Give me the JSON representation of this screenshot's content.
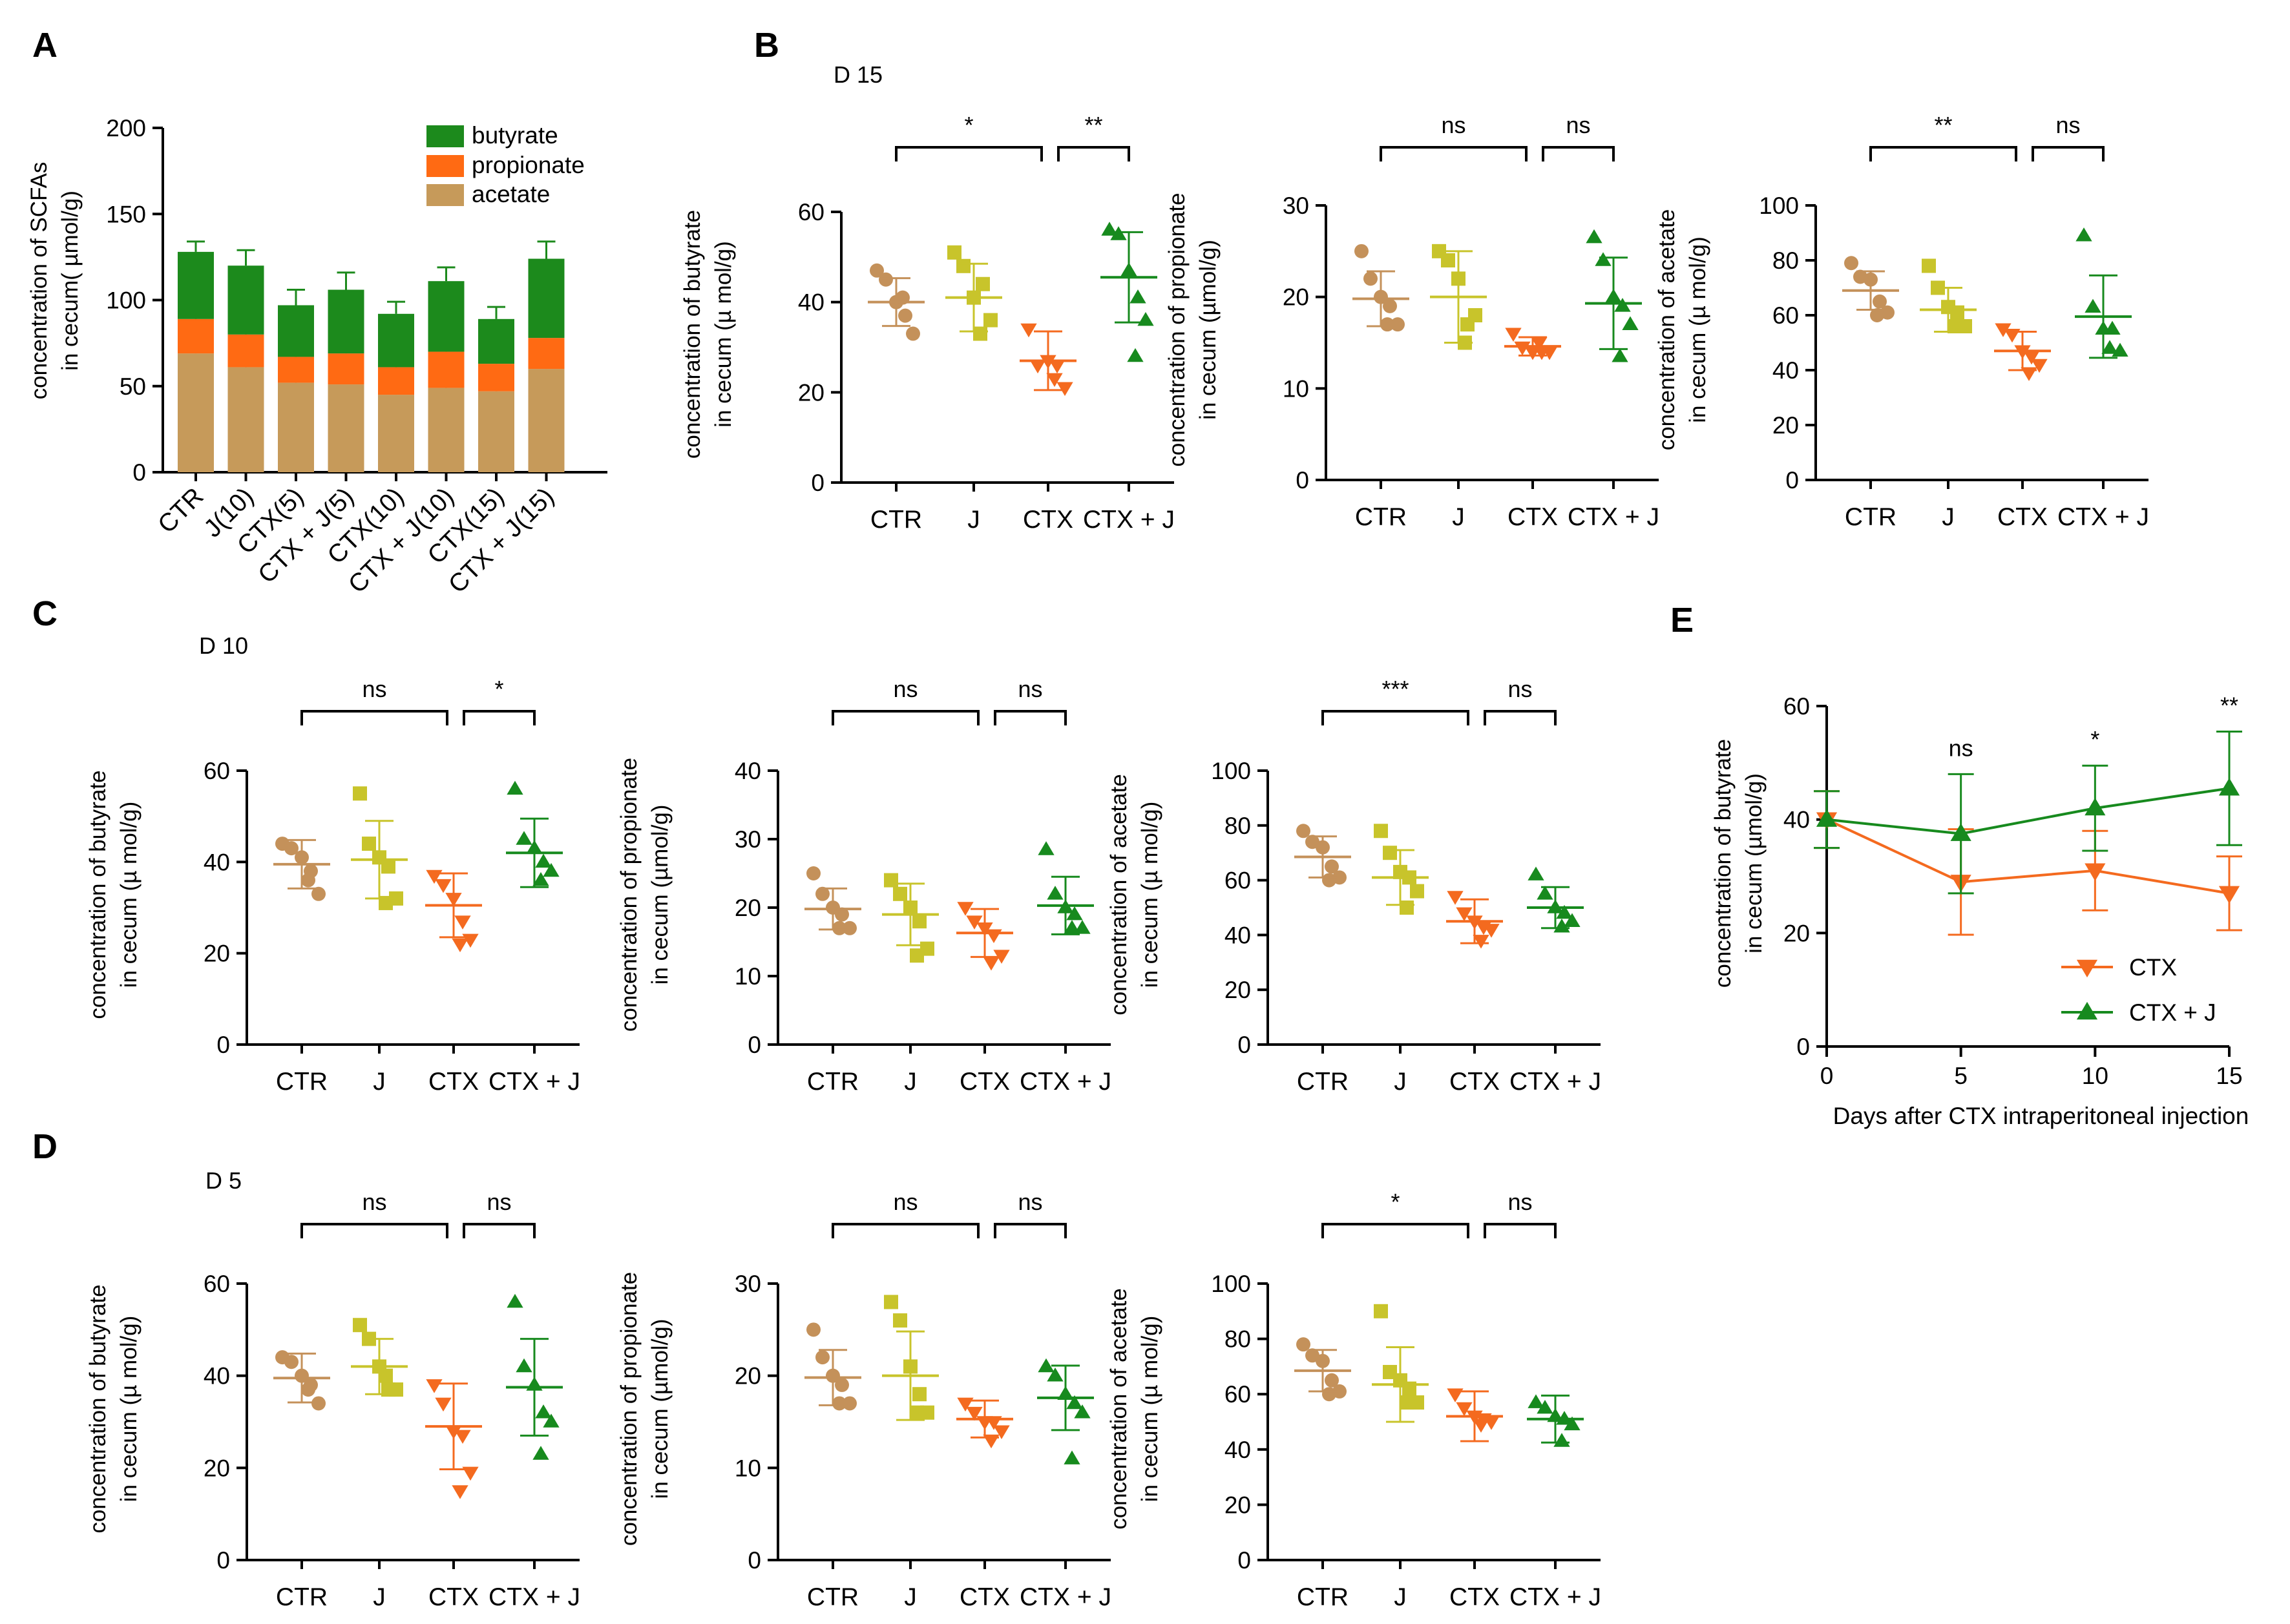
{
  "colors": {
    "ctr": "#C4915A",
    "j": "#C8C42B",
    "ctx": "#F46A1F",
    "ctxj": "#178A1E",
    "butyrate": "#1C8A1C",
    "propionate": "#FF6A13",
    "acetate": "#C69A5A"
  },
  "chart_data": [
    {
      "id": "A",
      "type": "bar",
      "stacked": true,
      "panel_label": "A",
      "ylabel_lines": [
        "concentration of SCFAs",
        "in cecum( µmol/g)"
      ],
      "ylim": [
        0,
        200
      ],
      "yticks": [
        0,
        50,
        100,
        150,
        200
      ],
      "categories": [
        "CTR",
        "J(10)",
        "CTX(5)",
        "CTX + J(5)",
        "CTX(10)",
        "CTX + J(10)",
        "CTX(15)",
        "CTX + J(15)"
      ],
      "series": [
        {
          "name": "acetate",
          "color_key": "acetate",
          "values": [
            69,
            61,
            52,
            51,
            45,
            49,
            47,
            60
          ],
          "errors": [
            9,
            10,
            7,
            9,
            8,
            9,
            7,
            9
          ]
        },
        {
          "name": "propionate",
          "color_key": "propionate",
          "values": [
            20,
            19,
            15,
            18,
            16,
            21,
            16,
            18
          ],
          "errors": [
            3,
            4,
            3,
            3,
            3,
            4,
            1,
            5
          ]
        },
        {
          "name": "butyrate",
          "color_key": "butyrate",
          "values": [
            39,
            40,
            30,
            37,
            31,
            41,
            26,
            46
          ],
          "errors": [
            6,
            9,
            9,
            10,
            7,
            8,
            7,
            10
          ]
        }
      ],
      "legend": [
        "butyrate",
        "propionate",
        "acetate"
      ]
    },
    {
      "id": "B1",
      "type": "scatter",
      "panel_label": "B",
      "day_title": "D 15",
      "ylabel_lines": [
        "concentration of butyrate",
        "in cecum (µ mol/g)"
      ],
      "ylim": [
        0,
        60
      ],
      "yticks": [
        0,
        20,
        40,
        60
      ],
      "categories": [
        "CTR",
        "J",
        "CTX",
        "CTX + J"
      ],
      "groups": [
        {
          "points": [
            47,
            45,
            40,
            37,
            33,
            41
          ],
          "mean": 40,
          "sd": 5.3
        },
        {
          "points": [
            51,
            48,
            41,
            44,
            36,
            33
          ],
          "mean": 41,
          "sd": 7.5
        },
        {
          "points": [
            34,
            26,
            27,
            26,
            21,
            23
          ],
          "mean": 27,
          "sd": 6.5
        },
        {
          "points": [
            56,
            55,
            47,
            41,
            36,
            28
          ],
          "mean": 45.5,
          "sd": 10
        }
      ],
      "significance": [
        {
          "from": 0,
          "to": 2,
          "label": "*"
        },
        {
          "from": 2,
          "to": 3,
          "label": "**"
        }
      ]
    },
    {
      "id": "B2",
      "type": "scatter",
      "ylabel_lines": [
        "concentration of propionate",
        "in cecum (µmol/g)"
      ],
      "ylim": [
        0,
        30
      ],
      "yticks": [
        0,
        10,
        20,
        30
      ],
      "categories": [
        "CTR",
        "J",
        "CTX",
        "CTX + J"
      ],
      "groups": [
        {
          "points": [
            25,
            22,
            20,
            19,
            17,
            17
          ],
          "mean": 19.8,
          "sd": 3
        },
        {
          "points": [
            25,
            24,
            22,
            17,
            18,
            15
          ],
          "mean": 20,
          "sd": 5
        },
        {
          "points": [
            16,
            14.5,
            14,
            14,
            14,
            15
          ],
          "mean": 14.6,
          "sd": 1
        },
        {
          "points": [
            26.5,
            24,
            20,
            19,
            17,
            13.5
          ],
          "mean": 19.3,
          "sd": 5
        }
      ],
      "significance": [
        {
          "from": 0,
          "to": 2,
          "label": "ns"
        },
        {
          "from": 2,
          "to": 3,
          "label": "ns"
        }
      ]
    },
    {
      "id": "B3",
      "type": "scatter",
      "ylabel_lines": [
        "concentration of acetate",
        "in cecum (µ mol/g)"
      ],
      "ylim": [
        0,
        100
      ],
      "yticks": [
        0,
        20,
        40,
        60,
        80,
        100
      ],
      "categories": [
        "CTR",
        "J",
        "CTX",
        "CTX + J"
      ],
      "groups": [
        {
          "points": [
            79,
            74,
            73,
            65,
            61,
            60
          ],
          "mean": 69,
          "sd": 7
        },
        {
          "points": [
            78,
            70,
            63,
            61,
            56,
            56
          ],
          "mean": 62,
          "sd": 8
        },
        {
          "points": [
            55,
            53,
            47,
            45,
            42,
            39
          ],
          "mean": 47,
          "sd": 7
        },
        {
          "points": [
            89,
            63,
            55,
            55,
            47,
            48
          ],
          "mean": 59.5,
          "sd": 15
        }
      ],
      "significance": [
        {
          "from": 0,
          "to": 2,
          "label": "**"
        },
        {
          "from": 2,
          "to": 3,
          "label": "ns"
        }
      ]
    },
    {
      "id": "C1",
      "type": "scatter",
      "panel_label": "C",
      "day_title": "D 10",
      "ylabel_lines": [
        "concentration of butyrate",
        "in cecum (µ mol/g)"
      ],
      "ylim": [
        0,
        60
      ],
      "yticks": [
        0,
        20,
        40,
        60
      ],
      "categories": [
        "CTR",
        "J",
        "CTX",
        "CTX + J"
      ],
      "groups": [
        {
          "points": [
            44,
            43,
            41,
            38,
            33,
            36
          ],
          "mean": 39.5,
          "sd": 5.3
        },
        {
          "points": [
            55,
            44,
            41,
            39,
            32,
            31
          ],
          "mean": 40.5,
          "sd": 8.5
        },
        {
          "points": [
            37,
            35,
            32,
            27,
            23,
            22
          ],
          "mean": 30.5,
          "sd": 7
        },
        {
          "points": [
            56,
            45,
            43,
            40,
            38,
            36
          ],
          "mean": 42,
          "sd": 7.5
        }
      ],
      "significance": [
        {
          "from": 0,
          "to": 2,
          "label": "ns"
        },
        {
          "from": 2,
          "to": 3,
          "label": "*"
        }
      ]
    },
    {
      "id": "C2",
      "type": "scatter",
      "ylabel_lines": [
        "concentration of propionate",
        "in cecum (µmol/g)"
      ],
      "ylim": [
        0,
        40
      ],
      "yticks": [
        0,
        10,
        20,
        30,
        40
      ],
      "categories": [
        "CTR",
        "J",
        "CTX",
        "CTX + J"
      ],
      "groups": [
        {
          "points": [
            25,
            22,
            20,
            19,
            17,
            17
          ],
          "mean": 19.8,
          "sd": 3
        },
        {
          "points": [
            24,
            22,
            20,
            18,
            14,
            13
          ],
          "mean": 19,
          "sd": 4.5
        },
        {
          "points": [
            20,
            18,
            17,
            16,
            13,
            12
          ],
          "mean": 16.3,
          "sd": 3.5
        },
        {
          "points": [
            28.5,
            22,
            20,
            19,
            17,
            17
          ],
          "mean": 20.3,
          "sd": 4.2
        }
      ],
      "significance": [
        {
          "from": 0,
          "to": 2,
          "label": "ns"
        },
        {
          "from": 2,
          "to": 3,
          "label": "ns"
        }
      ]
    },
    {
      "id": "C3",
      "type": "scatter",
      "ylabel_lines": [
        "concentration of acetate",
        "in cecum (µ mol/g)"
      ],
      "ylim": [
        0,
        100
      ],
      "yticks": [
        0,
        20,
        40,
        60,
        80,
        100
      ],
      "categories": [
        "CTR",
        "J",
        "CTX",
        "CTX + J"
      ],
      "groups": [
        {
          "points": [
            78,
            74,
            72,
            65,
            61,
            60
          ],
          "mean": 68.5,
          "sd": 7.5
        },
        {
          "points": [
            78,
            70,
            63,
            61,
            56,
            50
          ],
          "mean": 61,
          "sd": 10
        },
        {
          "points": [
            54,
            48,
            45,
            43,
            42,
            38
          ],
          "mean": 45,
          "sd": 8
        },
        {
          "points": [
            62,
            55,
            50,
            48,
            45,
            43
          ],
          "mean": 50,
          "sd": 7.5
        }
      ],
      "significance": [
        {
          "from": 0,
          "to": 2,
          "label": "***"
        },
        {
          "from": 2,
          "to": 3,
          "label": "ns"
        }
      ]
    },
    {
      "id": "D1",
      "type": "scatter",
      "panel_label": "D",
      "day_title": "D 5",
      "ylabel_lines": [
        "concentration of butyrate",
        "in cecum (µ mol/g)"
      ],
      "ylim": [
        0,
        60
      ],
      "yticks": [
        0,
        20,
        40,
        60
      ],
      "categories": [
        "CTR",
        "J",
        "CTX",
        "CTX + J"
      ],
      "groups": [
        {
          "points": [
            44,
            43,
            40,
            38,
            34,
            37
          ],
          "mean": 39.5,
          "sd": 5.3
        },
        {
          "points": [
            51,
            48,
            42,
            37,
            37,
            40
          ],
          "mean": 42,
          "sd": 6
        },
        {
          "points": [
            38,
            34,
            28,
            27,
            19,
            15
          ],
          "mean": 29,
          "sd": 9.3
        },
        {
          "points": [
            56,
            42,
            38,
            32,
            30,
            23
          ],
          "mean": 37.5,
          "sd": 10.5
        }
      ],
      "significance": [
        {
          "from": 0,
          "to": 2,
          "label": "ns"
        },
        {
          "from": 2,
          "to": 3,
          "label": "ns"
        }
      ]
    },
    {
      "id": "D2",
      "type": "scatter",
      "ylabel_lines": [
        "concentration of propionate",
        "in cecum (µmol/g)"
      ],
      "ylim": [
        0,
        30
      ],
      "yticks": [
        0,
        10,
        20,
        30
      ],
      "categories": [
        "CTR",
        "J",
        "CTX",
        "CTX + J"
      ],
      "groups": [
        {
          "points": [
            25,
            22,
            20,
            19,
            17,
            17
          ],
          "mean": 19.8,
          "sd": 3
        },
        {
          "points": [
            28,
            26,
            21,
            18,
            16,
            16
          ],
          "mean": 20,
          "sd": 4.8
        },
        {
          "points": [
            17,
            16,
            15,
            15,
            14,
            13
          ],
          "mean": 15.3,
          "sd": 2
        },
        {
          "points": [
            21,
            20,
            18,
            17,
            16,
            11
          ],
          "mean": 17.6,
          "sd": 3.5
        }
      ],
      "significance": [
        {
          "from": 0,
          "to": 2,
          "label": "ns"
        },
        {
          "from": 2,
          "to": 3,
          "label": "ns"
        }
      ]
    },
    {
      "id": "D3",
      "type": "scatter",
      "ylabel_lines": [
        "concentration of acetate",
        "in cecum (µ mol/g)"
      ],
      "ylim": [
        0,
        100
      ],
      "yticks": [
        0,
        20,
        40,
        60,
        80,
        100
      ],
      "categories": [
        "CTR",
        "J",
        "CTX",
        "CTX + J"
      ],
      "groups": [
        {
          "points": [
            78,
            74,
            72,
            65,
            61,
            60
          ],
          "mean": 68.5,
          "sd": 7.5
        },
        {
          "points": [
            90,
            68,
            65,
            62,
            57,
            57
          ],
          "mean": 63.5,
          "sd": 13.5
        },
        {
          "points": [
            60,
            55,
            52,
            51,
            50,
            49
          ],
          "mean": 52,
          "sd": 9
        },
        {
          "points": [
            57,
            55,
            52,
            51,
            49,
            43
          ],
          "mean": 51,
          "sd": 8.5
        }
      ],
      "significance": [
        {
          "from": 0,
          "to": 2,
          "label": "*"
        },
        {
          "from": 2,
          "to": 3,
          "label": "ns"
        }
      ]
    },
    {
      "id": "E",
      "type": "line",
      "panel_label": "E",
      "ylabel_lines": [
        "concentration of butyrate",
        "in cecum (µmol/g)"
      ],
      "xlabel": "Days after CTX intraperitoneal injection",
      "x": [
        0,
        5,
        10,
        15
      ],
      "xticks": [
        0,
        5,
        10,
        15
      ],
      "xlim": [
        0,
        15
      ],
      "ylim": [
        0,
        60
      ],
      "yticks": [
        0,
        20,
        40,
        60
      ],
      "series": [
        {
          "name": "CTX",
          "color_key": "ctx",
          "marker": "triangle-down",
          "values": [
            40,
            29,
            31,
            27
          ],
          "errors": [
            5,
            9.3,
            7,
            6.5
          ]
        },
        {
          "name": "CTX + J",
          "color_key": "ctxj",
          "marker": "triangle-up",
          "values": [
            40,
            37.5,
            42,
            45.5
          ],
          "errors": [
            5,
            10.5,
            7.5,
            10
          ]
        }
      ],
      "annotations": [
        {
          "x": 5,
          "label": "ns"
        },
        {
          "x": 10,
          "label": "*"
        },
        {
          "x": 15,
          "label": "**"
        }
      ]
    }
  ]
}
